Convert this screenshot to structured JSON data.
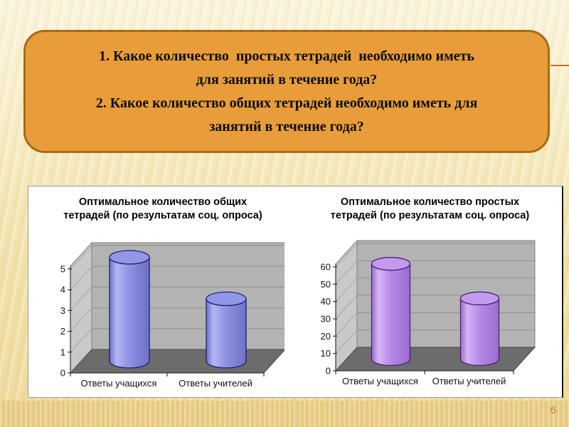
{
  "slide": {
    "page_number": "6",
    "question_box": {
      "lines": [
        "1. Какое количество  простых тетрадей  необходимо иметь",
        "для занятий в течение года?",
        "2. Какое количество общих тетрадей необходимо иметь для",
        "занятий в течение года?"
      ]
    }
  },
  "chart_style": {
    "wall_back": "#b3b3b3",
    "wall_side": "#c9c9c9",
    "floor": "#6c6c6c",
    "gridline": "#8f8f8f",
    "wall_edge": "#7f7f7f",
    "axis": "#333333",
    "text": "#111111",
    "background": "#ffffff"
  },
  "chart_data": [
    {
      "type": "bar",
      "subtype": "3d-cylinder",
      "title": "Оптимальное количество общих тетрадей (по результатам соц. опроса)",
      "title_lines": [
        "Оптимальное количество общих",
        "тетрадей (по результатам соц. опроса)"
      ],
      "categories": [
        "Ответы учащихся",
        "Ответы учителей"
      ],
      "values": [
        5,
        3
      ],
      "ylim": [
        0,
        5
      ],
      "tick_step": 1,
      "tick_labels": [
        "0",
        "1",
        "2",
        "3",
        "4",
        "5"
      ],
      "grid": true,
      "legend": "none",
      "xlabel": "",
      "ylabel": "",
      "colors": {
        "cylinder_light": "#b2b6f4",
        "cylinder_mid": "#8b8fe0",
        "cylinder_dark": "#6d71c4",
        "cylinder_top": "#9196e8",
        "outline": "#20216b"
      }
    },
    {
      "type": "bar",
      "subtype": "3d-cylinder",
      "title": "Оптимальное количество простых тетрадей (по результатам соц. опроса)",
      "title_lines": [
        "Оптимальное количество простых",
        "тетрадей (по результатам соц. опроса)"
      ],
      "categories": [
        "Ответы учащихся",
        "Ответы учителей"
      ],
      "values": [
        55,
        35
      ],
      "ylim": [
        0,
        60
      ],
      "tick_step": 10,
      "tick_labels": [
        "0",
        "10",
        "20",
        "30",
        "40",
        "50",
        "60"
      ],
      "grid": true,
      "legend": "none",
      "xlabel": "",
      "ylabel": "",
      "colors": {
        "cylinder_light": "#d6b4f6",
        "cylinder_mid": "#b388e4",
        "cylinder_dark": "#9a6cce",
        "cylinder_top": "#c29aee",
        "outline": "#4a2478"
      }
    }
  ]
}
